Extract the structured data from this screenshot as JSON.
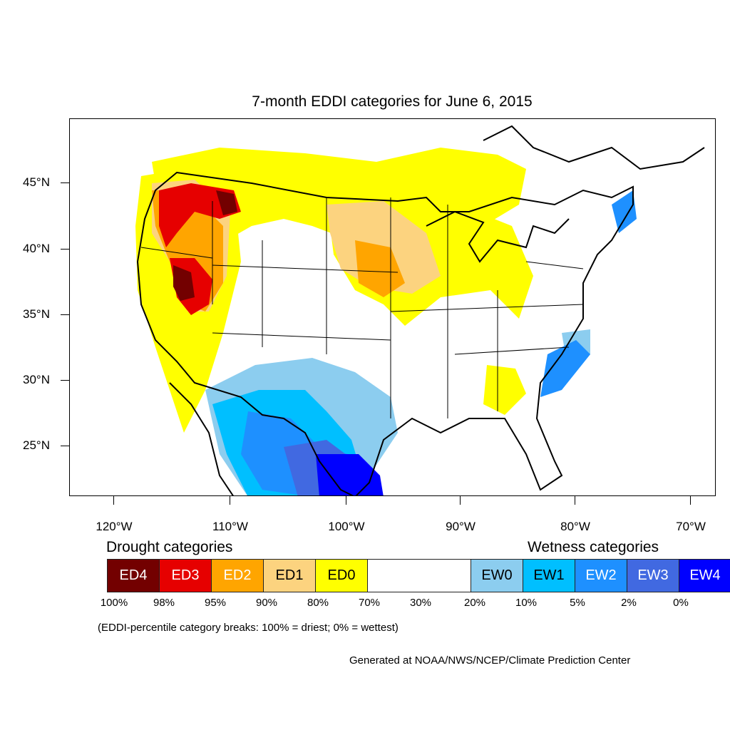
{
  "title": "7-month EDDI categories for June 6, 2015",
  "lat_axis": [
    "45°N",
    "40°N",
    "35°N",
    "30°N",
    "25°N"
  ],
  "lon_axis": [
    "120°W",
    "110°W",
    "100°W",
    "90°W",
    "80°W",
    "70°W"
  ],
  "legend": {
    "drought_heading": "Drought categories",
    "wetness_heading": "Wetness categories",
    "categories": [
      {
        "label": "ED4",
        "color": "#730000",
        "text_color": "#ffffff"
      },
      {
        "label": "ED3",
        "color": "#e60000",
        "text_color": "#ffffff"
      },
      {
        "label": "ED2",
        "color": "#ffa500",
        "text_color": "#ffffff"
      },
      {
        "label": "ED1",
        "color": "#fcd37f",
        "text_color": "#000000"
      },
      {
        "label": "ED0",
        "color": "#ffff00",
        "text_color": "#000000"
      },
      {
        "label": "",
        "color": "#ffffff",
        "text_color": "#000000"
      },
      {
        "label": "EW0",
        "color": "#8ccdef",
        "text_color": "#000000"
      },
      {
        "label": "EW1",
        "color": "#00bfff",
        "text_color": "#000000"
      },
      {
        "label": "EW2",
        "color": "#1e90ff",
        "text_color": "#ffffff"
      },
      {
        "label": "EW3",
        "color": "#4169e1",
        "text_color": "#ffffff"
      },
      {
        "label": "EW4",
        "color": "#0000ff",
        "text_color": "#ffffff"
      }
    ],
    "breaks": [
      "100%",
      "98%",
      "95%",
      "90%",
      "80%",
      "70%",
      "30%",
      "20%",
      "10%",
      "5%",
      "2%",
      "0%"
    ],
    "note": "(EDDI-percentile category breaks: 100% = driest; 0% = wettest)"
  },
  "credit": "Generated at NOAA/NWS/NCEP/Climate Prediction Center"
}
